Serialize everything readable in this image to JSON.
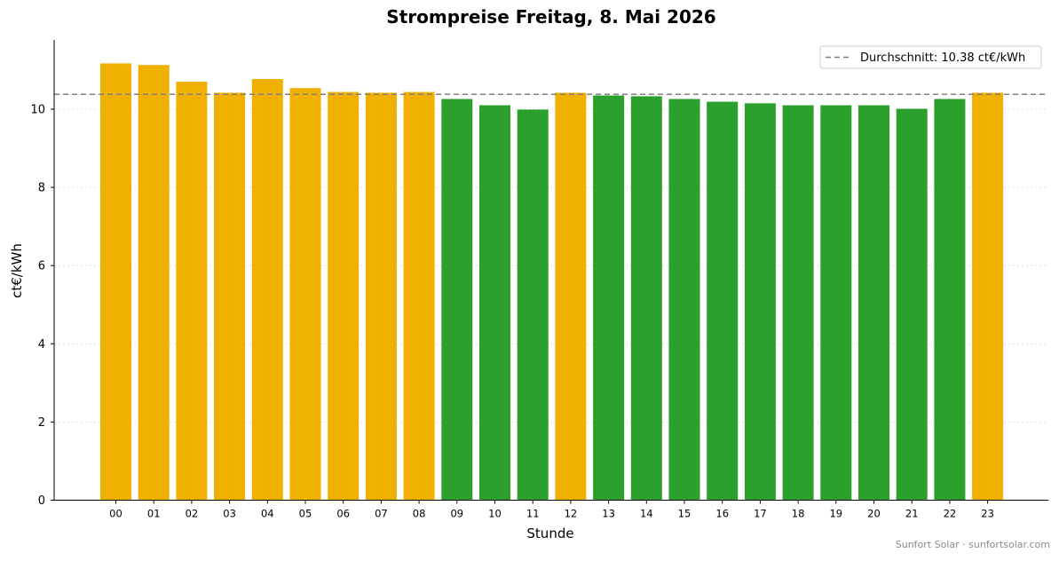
{
  "chart_data": {
    "type": "bar",
    "title": "Strompreise Freitag, 8. Mai 2026",
    "xlabel": "Stunde",
    "ylabel": "ct€/kWh",
    "categories": [
      "00",
      "01",
      "02",
      "03",
      "04",
      "05",
      "06",
      "07",
      "08",
      "09",
      "10",
      "11",
      "12",
      "13",
      "14",
      "15",
      "16",
      "17",
      "18",
      "19",
      "20",
      "21",
      "22",
      "23"
    ],
    "values": [
      11.17,
      11.13,
      10.7,
      10.42,
      10.77,
      10.54,
      10.44,
      10.42,
      10.44,
      10.26,
      10.1,
      9.99,
      10.42,
      10.35,
      10.33,
      10.26,
      10.19,
      10.15,
      10.1,
      10.1,
      10.1,
      10.01,
      10.26,
      10.42
    ],
    "bar_colors": [
      "#f0b000",
      "#f0b000",
      "#f0b000",
      "#f0b000",
      "#f0b000",
      "#f0b000",
      "#f0b000",
      "#f0b000",
      "#f0b000",
      "#2ca02c",
      "#2ca02c",
      "#2ca02c",
      "#f0b000",
      "#2ca02c",
      "#2ca02c",
      "#2ca02c",
      "#2ca02c",
      "#2ca02c",
      "#2ca02c",
      "#2ca02c",
      "#2ca02c",
      "#2ca02c",
      "#2ca02c",
      "#f0b000"
    ],
    "ylim": [
      0,
      11.77
    ],
    "yticks": [
      0,
      2,
      4,
      6,
      8,
      10
    ],
    "grid": "horizontal dotted",
    "average": {
      "value": 10.38,
      "label": "Durchschnitt: 10.38 ct€/kWh",
      "color": "#808080",
      "style": "dashed"
    },
    "legend_position": "top-right"
  },
  "footer": {
    "credit": "Sunfort Solar · sunfortsolar.com"
  }
}
